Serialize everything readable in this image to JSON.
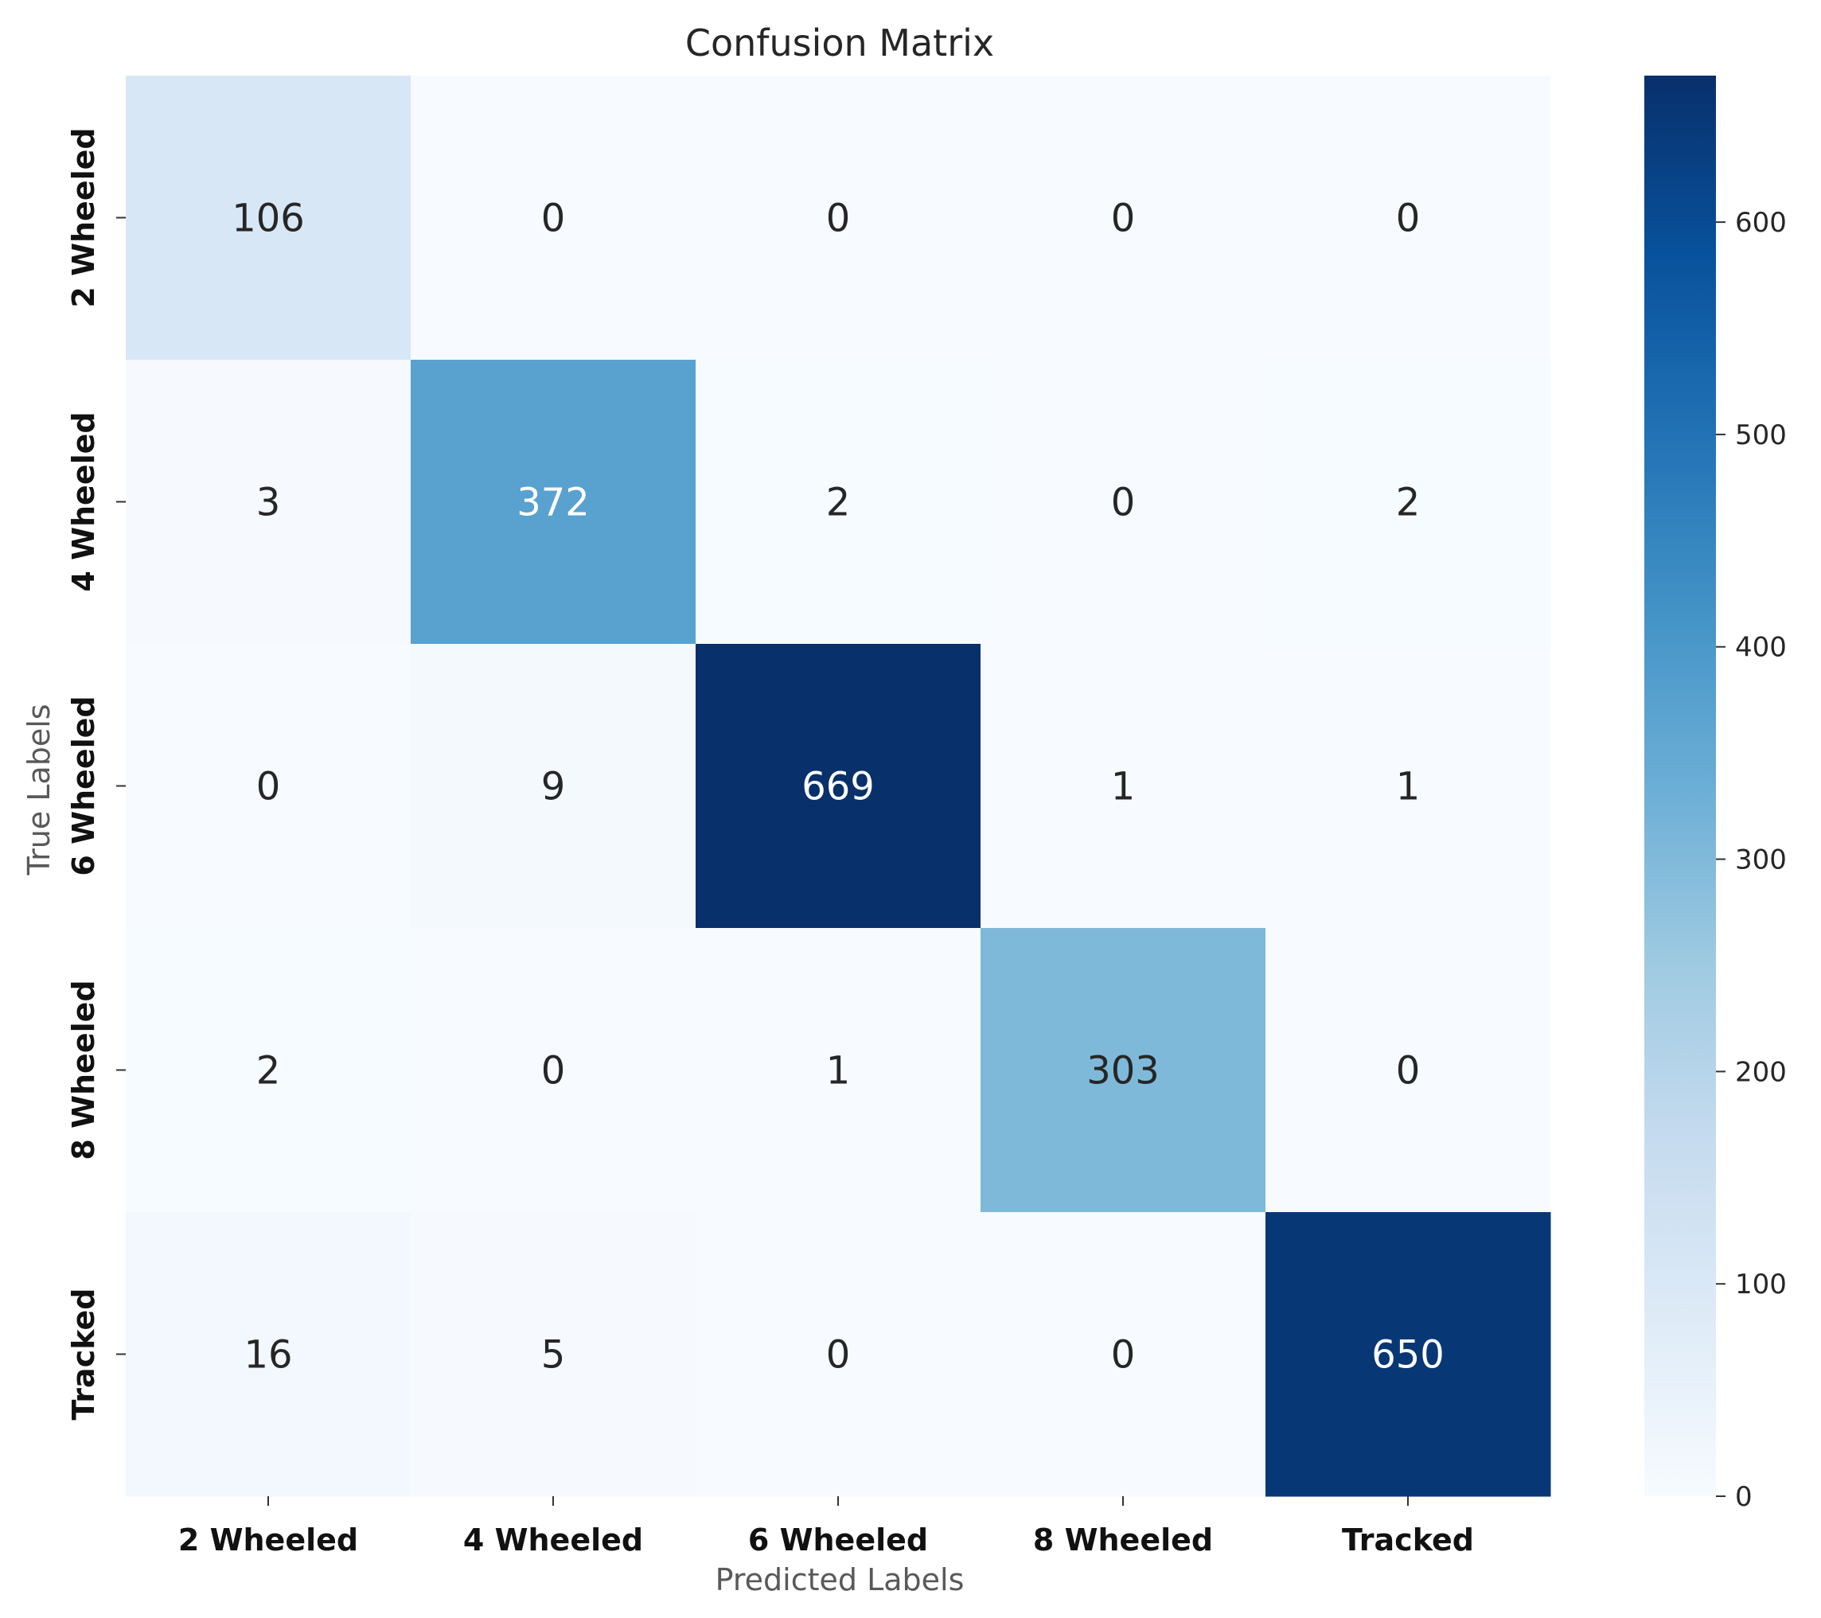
{
  "chart_data": {
    "type": "heatmap",
    "title": "Confusion Matrix",
    "xlabel": "Predicted Labels",
    "ylabel": "True Labels",
    "x_categories": [
      "2 Wheeled",
      "4 Wheeled",
      "6 Wheeled",
      "8 Wheeled",
      "Tracked"
    ],
    "y_categories": [
      "2 Wheeled",
      "4 Wheeled",
      "6 Wheeled",
      "8 Wheeled",
      "Tracked"
    ],
    "values": [
      [
        106,
        0,
        0,
        0,
        0
      ],
      [
        3,
        372,
        2,
        0,
        2
      ],
      [
        0,
        9,
        669,
        1,
        1
      ],
      [
        2,
        0,
        1,
        303,
        0
      ],
      [
        16,
        5,
        0,
        0,
        650
      ]
    ],
    "colorbar": {
      "min": 0,
      "max": 669,
      "ticks": [
        0,
        100,
        200,
        300,
        400,
        500,
        600
      ],
      "colormap": "Blues"
    },
    "colors": {
      "low": "#f7fbff",
      "high": "#08306b",
      "dark_text": "#262626",
      "light_text": "#ffffff"
    }
  }
}
